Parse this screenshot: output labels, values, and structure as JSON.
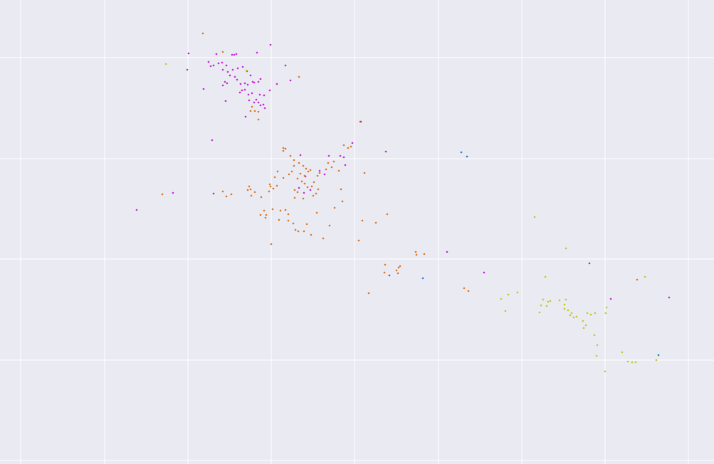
{
  "chart_data": {
    "type": "scatter",
    "title": "",
    "xlabel": "",
    "ylabel": "",
    "grid": true,
    "legend": "none",
    "background": "#eaeaf2",
    "gridcolor": "#ffffff",
    "xlim": [
      0,
      1003
    ],
    "ylim": [
      0,
      652
    ],
    "xticks": [
      29,
      147,
      264,
      381,
      498,
      616,
      733,
      850,
      967
    ],
    "yticks": [
      81,
      223,
      364,
      506,
      647
    ],
    "series": [
      {
        "color": "#cc44dd",
        "points": [
          [
            265,
            75
          ],
          [
            304,
            76
          ],
          [
            326,
            77
          ],
          [
            329,
            77
          ],
          [
            332,
            76
          ],
          [
            361,
            74
          ],
          [
            380,
            63
          ],
          [
            263,
            98
          ],
          [
            293,
            87
          ],
          [
            296,
            93
          ],
          [
            300,
            92
          ],
          [
            307,
            89
          ],
          [
            312,
            88
          ],
          [
            318,
            92
          ],
          [
            313,
            98
          ],
          [
            320,
            101
          ],
          [
            327,
            98
          ],
          [
            334,
            96
          ],
          [
            341,
            94
          ],
          [
            347,
            100
          ],
          [
            352,
            106
          ],
          [
            323,
            106
          ],
          [
            330,
            108
          ],
          [
            333,
            112
          ],
          [
            316,
            115
          ],
          [
            313,
            120
          ],
          [
            319,
            117
          ],
          [
            338,
            118
          ],
          [
            344,
            117
          ],
          [
            348,
            119
          ],
          [
            355,
            115
          ],
          [
            357,
            116
          ],
          [
            363,
            115
          ],
          [
            366,
            111
          ],
          [
            340,
            127
          ],
          [
            344,
            126
          ],
          [
            337,
            130
          ],
          [
            349,
            133
          ],
          [
            354,
            131
          ],
          [
            365,
            133
          ],
          [
            371,
            134
          ],
          [
            379,
            127
          ],
          [
            360,
            140
          ],
          [
            363,
            144
          ],
          [
            350,
            141
          ],
          [
            357,
            144
          ],
          [
            370,
            147
          ],
          [
            366,
            148
          ],
          [
            372,
            152
          ],
          [
            345,
            164
          ],
          [
            317,
            142
          ],
          [
            286,
            125
          ],
          [
            401,
            92
          ],
          [
            408,
            113
          ],
          [
            389,
            118
          ],
          [
            298,
            197
          ],
          [
            422,
            218
          ],
          [
            462,
            219
          ],
          [
            483,
            221
          ],
          [
            478,
            219
          ],
          [
            485,
            232
          ],
          [
            495,
            201
          ],
          [
            542,
            213
          ],
          [
            429,
            248
          ],
          [
            456,
            245
          ],
          [
            449,
            240
          ],
          [
            420,
            264
          ],
          [
            436,
            267
          ],
          [
            427,
            271
          ],
          [
            300,
            272
          ],
          [
            243,
            271
          ],
          [
            192,
            295
          ],
          [
            628,
            354
          ],
          [
            547,
            387
          ],
          [
            680,
            383
          ],
          [
            828,
            370
          ],
          [
            858,
            420
          ],
          [
            940,
            418
          ]
        ]
      },
      {
        "color": "#dd8844",
        "points": [
          [
            285,
            47
          ],
          [
            313,
            73
          ],
          [
            420,
            108
          ],
          [
            354,
            150
          ],
          [
            358,
            156
          ],
          [
            363,
            157
          ],
          [
            363,
            168
          ],
          [
            352,
            156
          ],
          [
            398,
            208
          ],
          [
            401,
            209
          ],
          [
            398,
            212
          ],
          [
            408,
            219
          ],
          [
            413,
            225
          ],
          [
            420,
            229
          ],
          [
            426,
            233
          ],
          [
            430,
            237
          ],
          [
            433,
            241
          ],
          [
            436,
            239
          ],
          [
            428,
            247
          ],
          [
            422,
            244
          ],
          [
            418,
            251
          ],
          [
            424,
            255
          ],
          [
            428,
            258
          ],
          [
            432,
            263
          ],
          [
            438,
            262
          ],
          [
            441,
            256
          ],
          [
            446,
            247
          ],
          [
            449,
            243
          ],
          [
            458,
            238
          ],
          [
            466,
            235
          ],
          [
            461,
            229
          ],
          [
            469,
            227
          ],
          [
            476,
            240
          ],
          [
            479,
            266
          ],
          [
            481,
            283
          ],
          [
            493,
            206
          ],
          [
            489,
            208
          ],
          [
            483,
            204
          ],
          [
            512,
            243
          ],
          [
            390,
            241
          ],
          [
            386,
            249
          ],
          [
            398,
            250
          ],
          [
            406,
            245
          ],
          [
            410,
            241
          ],
          [
            413,
            233
          ],
          [
            380,
            262
          ],
          [
            389,
            261
          ],
          [
            384,
            265
          ],
          [
            379,
            259
          ],
          [
            350,
            262
          ],
          [
            352,
            266
          ],
          [
            348,
            267
          ],
          [
            358,
            270
          ],
          [
            353,
            275
          ],
          [
            367,
            277
          ],
          [
            378,
            269
          ],
          [
            414,
            267
          ],
          [
            418,
            270
          ],
          [
            414,
            278
          ],
          [
            426,
            279
          ],
          [
            440,
            275
          ],
          [
            444,
            272
          ],
          [
            447,
            266
          ],
          [
            371,
            296
          ],
          [
            374,
            302
          ],
          [
            366,
            302
          ],
          [
            373,
            306
          ],
          [
            383,
            294
          ],
          [
            394,
            296
          ],
          [
            401,
            295
          ],
          [
            405,
            301
          ],
          [
            392,
            309
          ],
          [
            405,
            310
          ],
          [
            412,
            314
          ],
          [
            415,
            323
          ],
          [
            419,
            325
          ],
          [
            427,
            325
          ],
          [
            431,
            315
          ],
          [
            437,
            330
          ],
          [
            463,
            317
          ],
          [
            445,
            299
          ],
          [
            454,
            335
          ],
          [
            470,
            292
          ],
          [
            509,
            310
          ],
          [
            528,
            313
          ],
          [
            544,
            301
          ],
          [
            504,
            338
          ],
          [
            381,
            343
          ],
          [
            313,
            269
          ],
          [
            318,
            276
          ],
          [
            325,
            273
          ],
          [
            228,
            273
          ],
          [
            541,
            372
          ],
          [
            557,
            380
          ],
          [
            562,
            374
          ],
          [
            560,
            376
          ],
          [
            559,
            384
          ],
          [
            540,
            383
          ],
          [
            584,
            354
          ],
          [
            585,
            358
          ],
          [
            596,
            357
          ],
          [
            518,
            412
          ],
          [
            652,
            405
          ],
          [
            658,
            409
          ],
          [
            506,
            171
          ],
          [
            895,
            393
          ]
        ]
      },
      {
        "color": "#cccc44",
        "points": [
          [
            233,
            90
          ],
          [
            346,
            99
          ],
          [
            751,
            305
          ],
          [
            795,
            349
          ],
          [
            766,
            389
          ],
          [
            906,
            389
          ],
          [
            704,
            420
          ],
          [
            714,
            414
          ],
          [
            727,
            411
          ],
          [
            710,
            437
          ],
          [
            758,
            439
          ],
          [
            763,
            421
          ],
          [
            770,
            424
          ],
          [
            773,
            423
          ],
          [
            760,
            429
          ],
          [
            768,
            430
          ],
          [
            786,
            422
          ],
          [
            795,
            421
          ],
          [
            793,
            428
          ],
          [
            793,
            434
          ],
          [
            798,
            436
          ],
          [
            803,
            440
          ],
          [
            801,
            443
          ],
          [
            806,
            446
          ],
          [
            810,
            445
          ],
          [
            819,
            451
          ],
          [
            823,
            457
          ],
          [
            820,
            461
          ],
          [
            825,
            440
          ],
          [
            830,
            442
          ],
          [
            836,
            440
          ],
          [
            852,
            432
          ],
          [
            851,
            440
          ],
          [
            835,
            471
          ],
          [
            839,
            485
          ],
          [
            838,
            500
          ],
          [
            874,
            495
          ],
          [
            882,
            508
          ],
          [
            888,
            509
          ],
          [
            893,
            509
          ],
          [
            922,
            506
          ],
          [
            850,
            522
          ]
        ]
      },
      {
        "color": "#22aa99",
        "points": [
          [
            925,
            499
          ]
        ]
      },
      {
        "color": "#4488ee",
        "points": [
          [
            648,
            214
          ],
          [
            656,
            220
          ],
          [
            594,
            391
          ]
        ]
      },
      {
        "color": "#dd4455",
        "points": [
          [
            507,
            171
          ]
        ]
      }
    ]
  }
}
